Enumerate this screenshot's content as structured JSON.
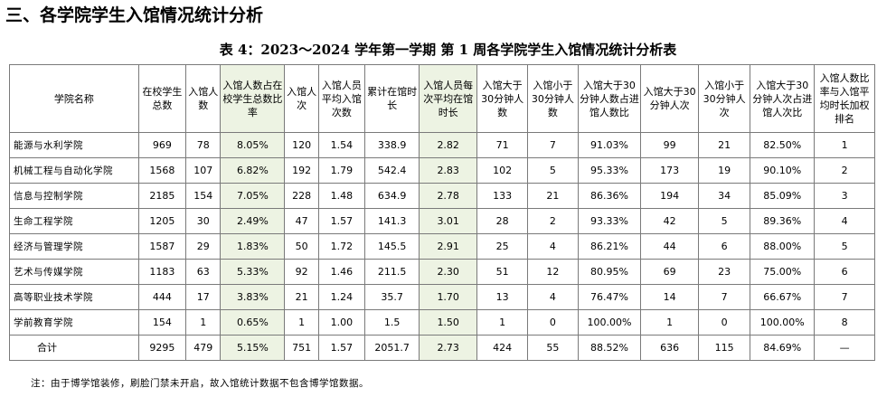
{
  "section_title": "三、各学院学生入馆情况统计分析",
  "table_caption": "表 4：2023～2024 学年第一学期 第 1 周各学院学生入馆情况统计分析表",
  "columns": [
    "学院名称",
    "在校学生总数",
    "入馆人数",
    "入馆人数占在校学生总数比率",
    "入馆人次",
    "入馆人员平均入馆次数",
    "累计在馆时长",
    "入馆人员每次平均在馆时长",
    "入馆大于30分钟人数",
    "入馆小于30分钟人数",
    "入馆大于30分钟人数占进馆人数比",
    "入馆大于30分钟人次",
    "入馆小于30分钟人次",
    "入馆大于30分钟人次占进馆人次比",
    "入馆人数比率与入馆平均时长加权排名"
  ],
  "rows": [
    [
      "能源与水利学院",
      "969",
      "78",
      "8.05%",
      "120",
      "1.54",
      "338.9",
      "2.82",
      "71",
      "7",
      "91.03%",
      "99",
      "21",
      "82.50%",
      "1"
    ],
    [
      "机械工程与自动化学院",
      "1568",
      "107",
      "6.82%",
      "192",
      "1.79",
      "542.4",
      "2.83",
      "102",
      "5",
      "95.33%",
      "173",
      "19",
      "90.10%",
      "2"
    ],
    [
      "信息与控制学院",
      "2185",
      "154",
      "7.05%",
      "228",
      "1.48",
      "634.9",
      "2.78",
      "133",
      "21",
      "86.36%",
      "194",
      "34",
      "85.09%",
      "3"
    ],
    [
      "生命工程学院",
      "1205",
      "30",
      "2.49%",
      "47",
      "1.57",
      "141.3",
      "3.01",
      "28",
      "2",
      "93.33%",
      "42",
      "5",
      "89.36%",
      "4"
    ],
    [
      "经济与管理学院",
      "1587",
      "29",
      "1.83%",
      "50",
      "1.72",
      "145.5",
      "2.91",
      "25",
      "4",
      "86.21%",
      "44",
      "6",
      "88.00%",
      "5"
    ],
    [
      "艺术与传媒学院",
      "1183",
      "63",
      "5.33%",
      "92",
      "1.46",
      "211.5",
      "2.30",
      "51",
      "12",
      "80.95%",
      "69",
      "23",
      "75.00%",
      "6"
    ],
    [
      "高等职业技术学院",
      "444",
      "17",
      "3.83%",
      "21",
      "1.24",
      "35.7",
      "1.70",
      "13",
      "4",
      "76.47%",
      "14",
      "7",
      "66.67%",
      "7"
    ],
    [
      "学前教育学院",
      "154",
      "1",
      "0.65%",
      "1",
      "1.00",
      "1.5",
      "1.50",
      "1",
      "0",
      "100.00%",
      "1",
      "0",
      "100.00%",
      "8"
    ]
  ],
  "total_row": [
    "合计",
    "9295",
    "479",
    "5.15%",
    "751",
    "1.57",
    "2051.7",
    "2.73",
    "424",
    "55",
    "88.52%",
    "636",
    "115",
    "84.69%",
    "—"
  ],
  "footnote": "注：由于博学馆装修，刷脸门禁未开启，故入馆统计数据不包含博学馆数据。",
  "colors": {
    "highlight_column": "#edf3e3",
    "border": "#7a7a7a"
  }
}
